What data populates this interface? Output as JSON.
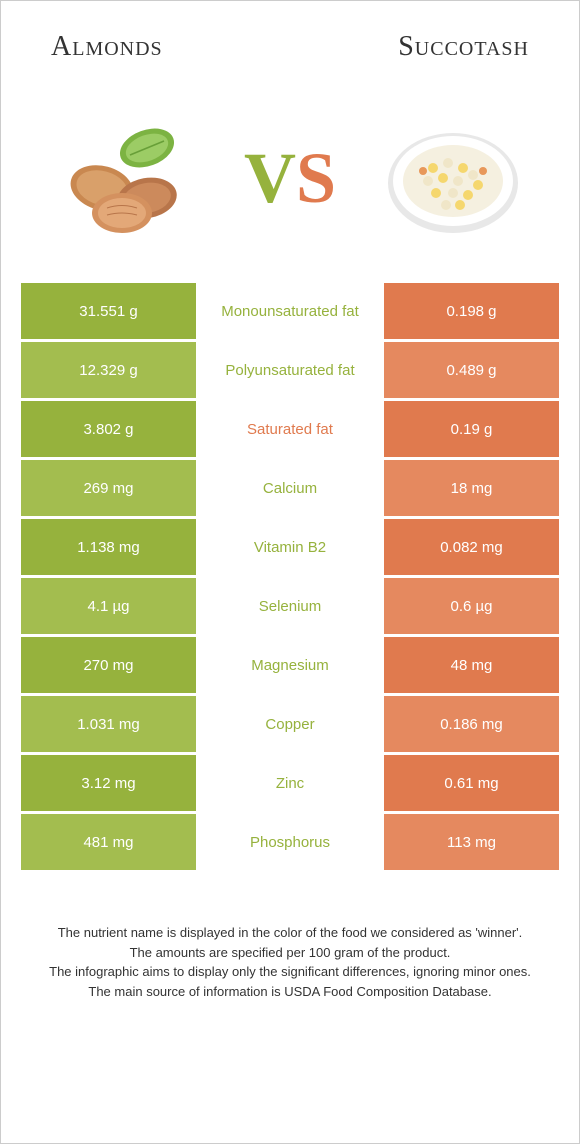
{
  "titles": {
    "left": "Almonds",
    "right": "Succotash"
  },
  "vs": {
    "v": "V",
    "s": "S"
  },
  "colors": {
    "left_bg": "#96b23d",
    "right_bg": "#e07a4e",
    "row_alt_left": "#a3bd4f",
    "row_alt_right": "#e5895f",
    "left_text": "#96b23d",
    "right_text": "#e07a4e",
    "body_text": "#333333"
  },
  "rows": [
    {
      "left": "31.551 g",
      "mid": "Monounsaturated fat",
      "right": "0.198 g",
      "winner": "left"
    },
    {
      "left": "12.329 g",
      "mid": "Polyunsaturated fat",
      "right": "0.489 g",
      "winner": "left"
    },
    {
      "left": "3.802 g",
      "mid": "Saturated fat",
      "right": "0.19 g",
      "winner": "right"
    },
    {
      "left": "269 mg",
      "mid": "Calcium",
      "right": "18 mg",
      "winner": "left"
    },
    {
      "left": "1.138 mg",
      "mid": "Vitamin B2",
      "right": "0.082 mg",
      "winner": "left"
    },
    {
      "left": "4.1 µg",
      "mid": "Selenium",
      "right": "0.6 µg",
      "winner": "left"
    },
    {
      "left": "270 mg",
      "mid": "Magnesium",
      "right": "48 mg",
      "winner": "left"
    },
    {
      "left": "1.031 mg",
      "mid": "Copper",
      "right": "0.186 mg",
      "winner": "left"
    },
    {
      "left": "3.12 mg",
      "mid": "Zinc",
      "right": "0.61 mg",
      "winner": "left"
    },
    {
      "left": "481 mg",
      "mid": "Phosphorus",
      "right": "113 mg",
      "winner": "left"
    }
  ],
  "footer": {
    "line1": "The nutrient name is displayed in the color of the food we considered as 'winner'.",
    "line2": "The amounts are specified per 100 gram of the product.",
    "line3": "The infographic aims to display only the significant differences, ignoring minor ones.",
    "line4": "The main source of information is USDA Food Composition Database."
  }
}
